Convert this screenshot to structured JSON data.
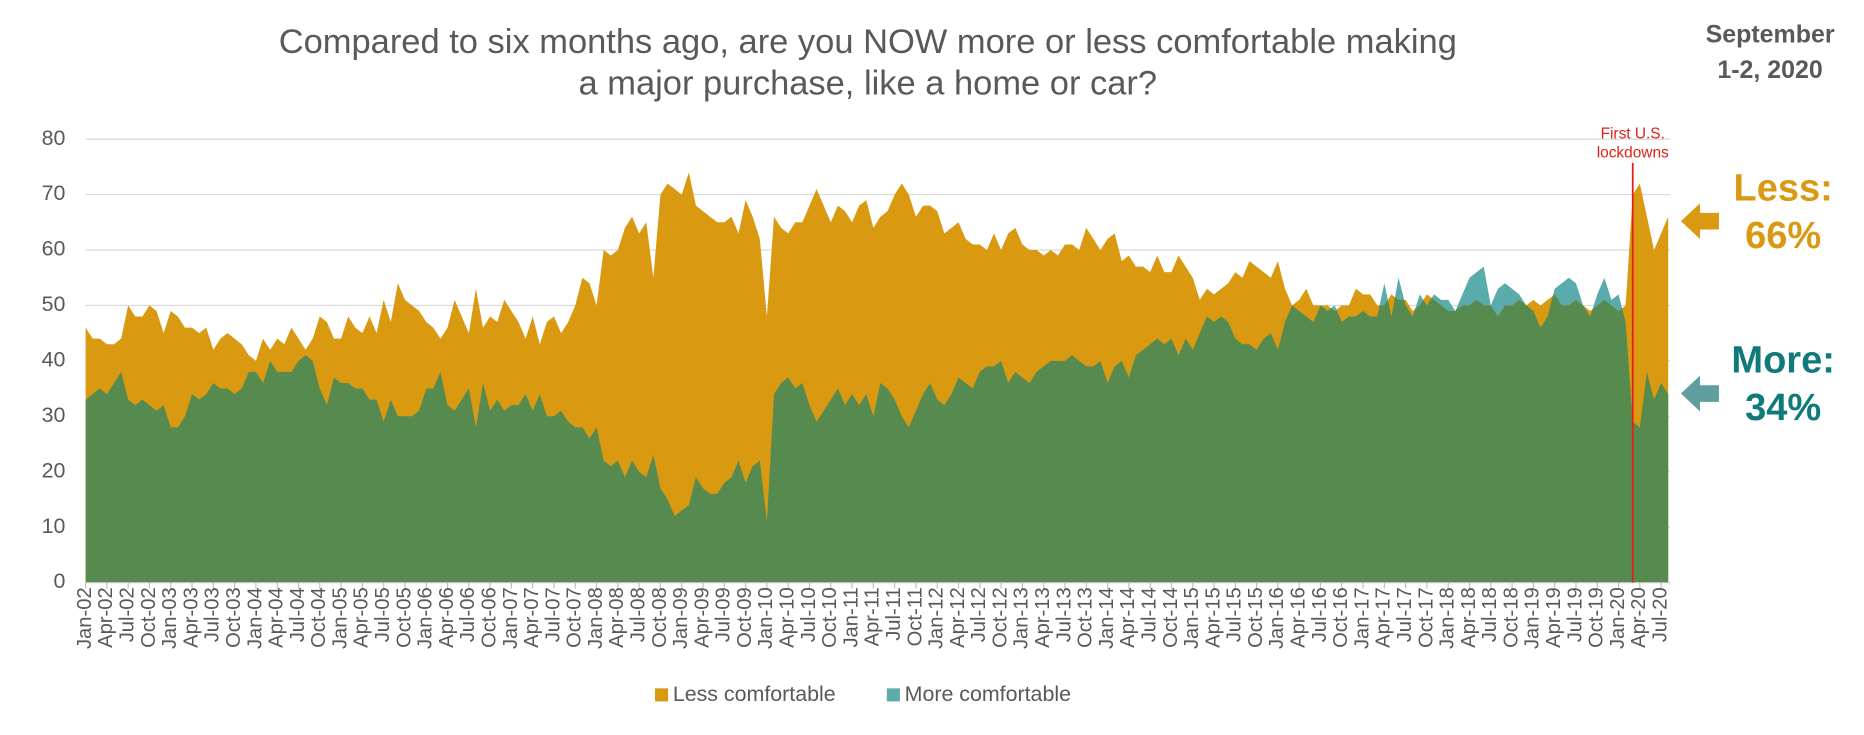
{
  "chart_data": {
    "type": "area",
    "title": "Compared to six months ago, are you NOW more or less comfortable making a major purchase, like a home or car?",
    "subtitle": [
      "September",
      "1-2, 2020"
    ],
    "annotation": [
      "First U.S.",
      "lockdowns"
    ],
    "categories": [
      "Jan-02",
      null,
      null,
      "Apr-02",
      null,
      null,
      "Jul-02",
      null,
      null,
      "Oct-02",
      null,
      null,
      "Jan-03",
      null,
      null,
      "Apr-03",
      null,
      null,
      "Jul-03",
      null,
      null,
      "Oct-03",
      null,
      null,
      "Jan-04",
      null,
      null,
      "Apr-04",
      null,
      null,
      "Jul-04",
      null,
      null,
      "Oct-04",
      null,
      null,
      "Jan-05",
      null,
      null,
      "Apr-05",
      null,
      null,
      "Jul-05",
      null,
      null,
      "Oct-05",
      null,
      null,
      "Jan-06",
      null,
      null,
      "Apr-06",
      null,
      null,
      "Jul-06",
      null,
      null,
      "Oct-06",
      null,
      null,
      "Jan-07",
      null,
      null,
      "Apr-07",
      null,
      null,
      "Jul-07",
      null,
      null,
      "Oct-07",
      null,
      null,
      "Jan-08",
      null,
      null,
      "Apr-08",
      null,
      null,
      "Jul-08",
      null,
      null,
      "Oct-08",
      null,
      null,
      "Jan-09",
      null,
      null,
      "Apr-09",
      null,
      null,
      "Jul-09",
      null,
      null,
      "Oct-09",
      null,
      null,
      "Jan-10",
      null,
      null,
      "Apr-10",
      null,
      null,
      "Jul-10",
      null,
      null,
      "Oct-10",
      null,
      null,
      "Jan-11",
      null,
      null,
      "Apr-11",
      null,
      null,
      "Jul-11",
      null,
      null,
      "Oct-11",
      null,
      null,
      "Jan-12",
      null,
      null,
      "Apr-12",
      null,
      null,
      "Jul-12",
      null,
      null,
      "Oct-12",
      null,
      null,
      "Jan-13",
      null,
      null,
      "Apr-13",
      null,
      null,
      "Jul-13",
      null,
      null,
      "Oct-13",
      null,
      null,
      "Jan-14",
      null,
      null,
      "Apr-14",
      null,
      null,
      "Jul-14",
      null,
      null,
      "Oct-14",
      null,
      null,
      "Jan-15",
      null,
      null,
      "Apr-15",
      null,
      null,
      "Jul-15",
      null,
      null,
      "Oct-15",
      null,
      null,
      "Jan-16",
      null,
      null,
      "Apr-16",
      null,
      null,
      "Jul-16",
      null,
      null,
      "Oct-16",
      null,
      null,
      "Jan-17",
      null,
      null,
      "Apr-17",
      null,
      null,
      "Jul-17",
      null,
      null,
      "Oct-17",
      null,
      null,
      "Jan-18",
      null,
      null,
      "Apr-18",
      null,
      null,
      "Jul-18",
      null,
      null,
      "Oct-18",
      null,
      null,
      "Jan-19",
      null,
      null,
      "Apr-19",
      null,
      null,
      "Jul-19",
      null,
      null,
      "Oct-19",
      null,
      null,
      "Jan-20",
      null,
      null,
      "Apr-20",
      null,
      null,
      "Jul-20",
      null
    ],
    "series": [
      {
        "name": "Less comfortable",
        "color": "#d99a12",
        "values": [
          46,
          44,
          44,
          43,
          43,
          44,
          50,
          48,
          48,
          50,
          49,
          45,
          49,
          48,
          46,
          46,
          45,
          46,
          42,
          44,
          45,
          44,
          43,
          41,
          40,
          44,
          42,
          44,
          43,
          46,
          44,
          42,
          44,
          48,
          47,
          44,
          44,
          48,
          46,
          45,
          48,
          45,
          51,
          47,
          54,
          51,
          50,
          49,
          47,
          46,
          44,
          46,
          51,
          48,
          45,
          53,
          46,
          48,
          47,
          51,
          49,
          47,
          44,
          48,
          43,
          47,
          48,
          45,
          47,
          50,
          55,
          54,
          50,
          60,
          59,
          60,
          64,
          66,
          63,
          65,
          55,
          70,
          72,
          71,
          70,
          74,
          68,
          67,
          66,
          65,
          65,
          66,
          63,
          69,
          66,
          62,
          48,
          66,
          64,
          63,
          65,
          65,
          68,
          71,
          68,
          65,
          68,
          67,
          65,
          68,
          69,
          64,
          66,
          67,
          70,
          72,
          70,
          66,
          68,
          68,
          67,
          63,
          64,
          65,
          62,
          61,
          61,
          60,
          63,
          60,
          63,
          64,
          61,
          60,
          60,
          59,
          60,
          59,
          61,
          61,
          60,
          64,
          62,
          60,
          62,
          63,
          58,
          59,
          57,
          57,
          56,
          59,
          56,
          56,
          59,
          57,
          55,
          51,
          53,
          52,
          53,
          54,
          56,
          55,
          58,
          57,
          56,
          55,
          58,
          53,
          50,
          51,
          53,
          50,
          50,
          50,
          49,
          50,
          50,
          53,
          52,
          52,
          50,
          50,
          52,
          51,
          51,
          49,
          50,
          52,
          51,
          50,
          49,
          49,
          50,
          50,
          51,
          50,
          50,
          48,
          50,
          50,
          51,
          50,
          51,
          50,
          51,
          52,
          50,
          50,
          51,
          50,
          49,
          50,
          51,
          50,
          49,
          50,
          70,
          72,
          66,
          60,
          63,
          66
        ]
      },
      {
        "name": "More comfortable",
        "color": "#5aabab",
        "values": [
          33,
          34,
          35,
          34,
          36,
          38,
          33,
          32,
          33,
          32,
          31,
          32,
          28,
          28,
          30,
          34,
          33,
          34,
          36,
          35,
          35,
          34,
          35,
          38,
          38,
          36,
          40,
          38,
          38,
          38,
          40,
          41,
          40,
          35,
          32,
          37,
          36,
          36,
          35,
          35,
          33,
          33,
          29,
          33,
          30,
          30,
          30,
          31,
          35,
          35,
          38,
          32,
          31,
          33,
          35,
          28,
          36,
          31,
          33,
          31,
          32,
          32,
          34,
          31,
          34,
          30,
          30,
          31,
          29,
          28,
          28,
          26,
          28,
          22,
          21,
          22,
          19,
          22,
          20,
          19,
          23,
          17,
          15,
          12,
          13,
          14,
          19,
          17,
          16,
          16,
          18,
          19,
          22,
          18,
          21,
          22,
          11,
          34,
          36,
          37,
          35,
          36,
          32,
          29,
          31,
          33,
          35,
          32,
          34,
          32,
          34,
          30,
          36,
          35,
          33,
          30,
          28,
          31,
          34,
          36,
          33,
          32,
          34,
          37,
          36,
          35,
          38,
          39,
          39,
          40,
          36,
          38,
          37,
          36,
          38,
          39,
          40,
          40,
          40,
          41,
          40,
          39,
          39,
          40,
          36,
          39,
          40,
          37,
          41,
          42,
          43,
          44,
          43,
          44,
          41,
          44,
          42,
          45,
          48,
          47,
          48,
          47,
          44,
          43,
          43,
          42,
          44,
          45,
          42,
          47,
          50,
          49,
          48,
          47,
          50,
          49,
          50,
          47,
          48,
          48,
          49,
          48,
          48,
          54,
          48,
          55,
          50,
          48,
          52,
          50,
          52,
          51,
          51,
          49,
          52,
          55,
          56,
          57,
          50,
          53,
          54,
          53,
          52,
          50,
          49,
          46,
          48,
          53,
          54,
          55,
          54,
          50,
          48,
          52,
          55,
          51,
          52,
          47,
          29,
          28,
          38,
          33,
          36,
          34
        ]
      }
    ],
    "overlap_color": "#578a4f",
    "ylim": [
      0,
      80
    ],
    "yticks": [
      0,
      10,
      20,
      30,
      40,
      50,
      60,
      70,
      80
    ],
    "grid": true,
    "callouts": [
      {
        "label": "Less:",
        "value": 66,
        "value_label": "66%",
        "color": "#d99a12"
      },
      {
        "label": "More:",
        "value": 34,
        "value_label": "34%",
        "color": "#0f7a78"
      }
    ]
  }
}
